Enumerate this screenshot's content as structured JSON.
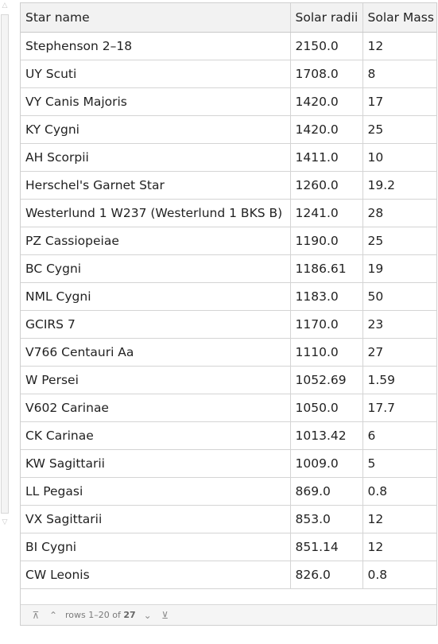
{
  "table": {
    "headers": [
      "Star name",
      "Solar radii",
      "Solar Mass"
    ],
    "rows": [
      [
        "Stephenson 2–18",
        "2150.0",
        "12"
      ],
      [
        "UY Scuti",
        "1708.0",
        "8"
      ],
      [
        "VY Canis Majoris",
        "1420.0",
        "17"
      ],
      [
        "KY Cygni",
        "1420.0",
        "25"
      ],
      [
        "AH Scorpii",
        "1411.0",
        "10"
      ],
      [
        "Herschel's Garnet Star",
        "1260.0",
        "19.2"
      ],
      [
        "Westerlund 1 W237 (Westerlund 1 BKS B)",
        "1241.0",
        "28"
      ],
      [
        "PZ Cassiopeiae",
        "1190.0",
        "25"
      ],
      [
        "BC Cygni",
        "1186.61",
        "19"
      ],
      [
        "NML Cygni",
        "1183.0",
        "50"
      ],
      [
        "GCIRS 7",
        "1170.0",
        "23"
      ],
      [
        "V766 Centauri Aa",
        "1110.0",
        "27"
      ],
      [
        "W Persei",
        "1052.69",
        "1.59"
      ],
      [
        "V602 Carinae",
        "1050.0",
        "17.7"
      ],
      [
        "CK Carinae",
        "1013.42",
        "6"
      ],
      [
        "KW Sagittarii",
        "1009.0",
        "5"
      ],
      [
        "LL Pegasi",
        "869.0",
        "0.8"
      ],
      [
        "VX Sagittarii",
        "853.0",
        "12"
      ],
      [
        "BI Cygni",
        "851.14",
        "12"
      ],
      [
        "CW Leonis",
        "826.0",
        "0.8"
      ]
    ]
  },
  "pager": {
    "rows_prefix": "rows 1–20 of",
    "total": "27",
    "first_icon": "first-page-icon",
    "prev_icon": "previous-page-icon",
    "next_icon": "next-page-icon",
    "last_icon": "last-page-icon"
  }
}
